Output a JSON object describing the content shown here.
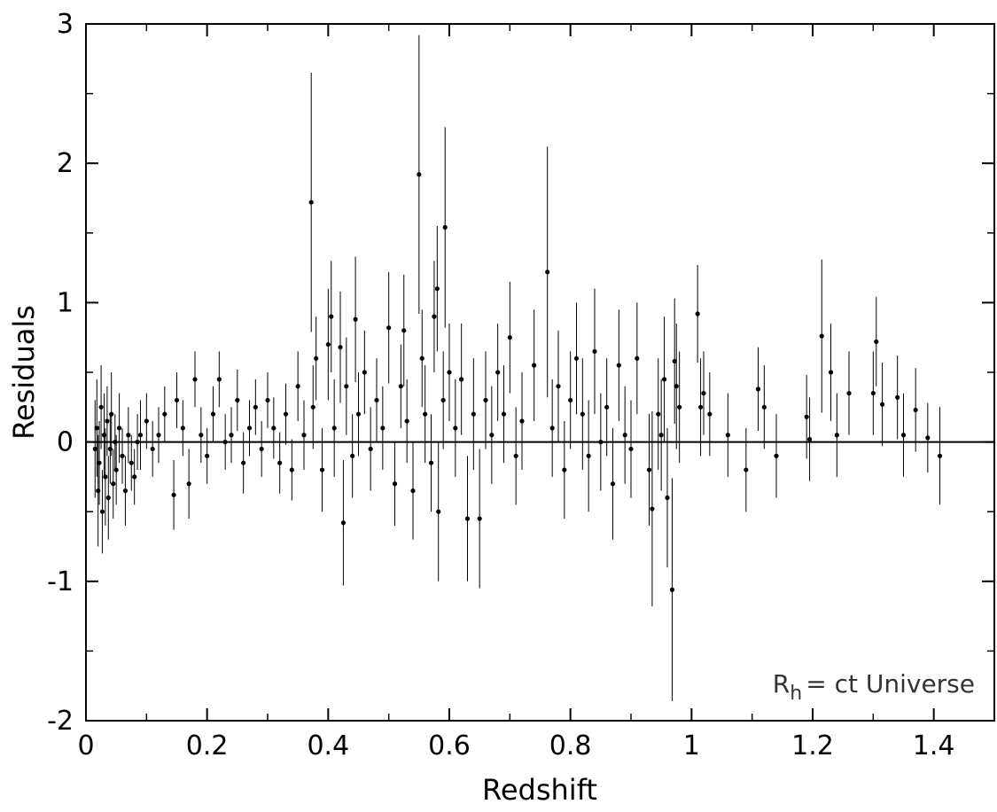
{
  "chart_data": {
    "type": "scatter",
    "title": "",
    "xlabel": "Redshift",
    "ylabel": "Residuals",
    "xlim": [
      0,
      1.5
    ],
    "ylim": [
      -2,
      3
    ],
    "grid": false,
    "x_ticks": [
      0,
      0.2,
      0.4,
      0.6,
      0.8,
      1,
      1.2,
      1.4
    ],
    "x_tick_labels": [
      "0",
      "0.2",
      "0.4",
      "0.6",
      "0.8",
      "1",
      "1.2",
      "1.4"
    ],
    "y_ticks": [
      -2,
      -1,
      0,
      1,
      2,
      3
    ],
    "y_tick_labels": [
      "-2",
      "-1",
      "0",
      "1",
      "2",
      "3"
    ],
    "reference_line_y": 0,
    "annotation": {
      "main": "R",
      "sub": "h",
      "rest": "= ct  Universe"
    },
    "marker_color": "#000000",
    "series": [
      {
        "marker": "dot-with-errorbar",
        "points": [
          [
            0.015,
            -0.05,
            0.35
          ],
          [
            0.018,
            0.1,
            0.35
          ],
          [
            0.02,
            -0.35,
            0.4
          ],
          [
            0.022,
            -0.15,
            0.3
          ],
          [
            0.025,
            0.25,
            0.3
          ],
          [
            0.027,
            -0.5,
            0.3
          ],
          [
            0.03,
            0.05,
            0.3
          ],
          [
            0.032,
            -0.25,
            0.35
          ],
          [
            0.035,
            0.15,
            0.25
          ],
          [
            0.037,
            -0.4,
            0.3
          ],
          [
            0.04,
            -0.05,
            0.25
          ],
          [
            0.042,
            0.2,
            0.3
          ],
          [
            0.045,
            -0.3,
            0.25
          ],
          [
            0.048,
            0.0,
            0.2
          ],
          [
            0.05,
            -0.2,
            0.25
          ],
          [
            0.055,
            0.1,
            0.25
          ],
          [
            0.06,
            -0.1,
            0.2
          ],
          [
            0.065,
            -0.35,
            0.25
          ],
          [
            0.07,
            0.05,
            0.2
          ],
          [
            0.075,
            -0.15,
            0.2
          ],
          [
            0.08,
            -0.25,
            0.2
          ],
          [
            0.085,
            0.0,
            0.2
          ],
          [
            0.09,
            0.05,
            0.25
          ],
          [
            0.1,
            0.15,
            0.2
          ],
          [
            0.11,
            -0.05,
            0.2
          ],
          [
            0.12,
            0.05,
            0.2
          ],
          [
            0.13,
            0.2,
            0.2
          ],
          [
            0.145,
            -0.38,
            0.25
          ],
          [
            0.15,
            0.3,
            0.2
          ],
          [
            0.16,
            0.1,
            0.2
          ],
          [
            0.17,
            -0.3,
            0.25
          ],
          [
            0.18,
            0.45,
            0.2
          ],
          [
            0.19,
            0.05,
            0.2
          ],
          [
            0.2,
            -0.1,
            0.2
          ],
          [
            0.21,
            0.2,
            0.2
          ],
          [
            0.22,
            0.45,
            0.2
          ],
          [
            0.23,
            0.0,
            0.2
          ],
          [
            0.24,
            0.05,
            0.2
          ],
          [
            0.25,
            0.3,
            0.22
          ],
          [
            0.26,
            -0.15,
            0.22
          ],
          [
            0.27,
            0.1,
            0.2
          ],
          [
            0.28,
            0.25,
            0.2
          ],
          [
            0.29,
            -0.05,
            0.2
          ],
          [
            0.3,
            0.3,
            0.2
          ],
          [
            0.31,
            0.1,
            0.22
          ],
          [
            0.32,
            -0.15,
            0.22
          ],
          [
            0.33,
            0.2,
            0.22
          ],
          [
            0.34,
            -0.2,
            0.22
          ],
          [
            0.35,
            0.4,
            0.25
          ],
          [
            0.36,
            0.05,
            0.25
          ],
          [
            0.372,
            1.72,
            0.93
          ],
          [
            0.375,
            0.25,
            0.3
          ],
          [
            0.38,
            0.6,
            0.3
          ],
          [
            0.39,
            -0.2,
            0.3
          ],
          [
            0.4,
            0.7,
            0.4
          ],
          [
            0.405,
            0.9,
            0.4
          ],
          [
            0.41,
            0.1,
            0.35
          ],
          [
            0.42,
            0.68,
            0.4
          ],
          [
            0.425,
            -0.58,
            0.45
          ],
          [
            0.43,
            0.4,
            0.35
          ],
          [
            0.44,
            -0.1,
            0.3
          ],
          [
            0.445,
            0.88,
            0.45
          ],
          [
            0.45,
            0.2,
            0.3
          ],
          [
            0.46,
            0.5,
            0.3
          ],
          [
            0.47,
            -0.05,
            0.3
          ],
          [
            0.48,
            0.3,
            0.3
          ],
          [
            0.49,
            0.1,
            0.3
          ],
          [
            0.5,
            0.82,
            0.4
          ],
          [
            0.51,
            -0.3,
            0.3
          ],
          [
            0.52,
            0.4,
            0.3
          ],
          [
            0.525,
            0.8,
            0.4
          ],
          [
            0.53,
            0.15,
            0.3
          ],
          [
            0.54,
            -0.35,
            0.35
          ],
          [
            0.55,
            1.92,
            1.0
          ],
          [
            0.555,
            0.6,
            0.35
          ],
          [
            0.56,
            0.2,
            0.35
          ],
          [
            0.57,
            -0.15,
            0.35
          ],
          [
            0.575,
            0.9,
            0.4
          ],
          [
            0.58,
            1.1,
            0.45
          ],
          [
            0.582,
            -0.5,
            0.5
          ],
          [
            0.59,
            0.3,
            0.35
          ],
          [
            0.593,
            1.54,
            0.72
          ],
          [
            0.6,
            0.5,
            0.35
          ],
          [
            0.61,
            0.1,
            0.35
          ],
          [
            0.62,
            0.45,
            0.4
          ],
          [
            0.63,
            -0.55,
            0.45
          ],
          [
            0.64,
            0.2,
            0.4
          ],
          [
            0.65,
            -0.55,
            0.5
          ],
          [
            0.66,
            0.3,
            0.35
          ],
          [
            0.67,
            0.05,
            0.35
          ],
          [
            0.68,
            0.5,
            0.35
          ],
          [
            0.69,
            0.2,
            0.35
          ],
          [
            0.7,
            0.75,
            0.4
          ],
          [
            0.71,
            -0.1,
            0.35
          ],
          [
            0.72,
            0.15,
            0.35
          ],
          [
            0.74,
            0.55,
            0.4
          ],
          [
            0.762,
            1.22,
            0.9
          ],
          [
            0.77,
            0.1,
            0.35
          ],
          [
            0.78,
            0.4,
            0.4
          ],
          [
            0.79,
            -0.2,
            0.35
          ],
          [
            0.8,
            0.3,
            0.35
          ],
          [
            0.81,
            0.6,
            0.4
          ],
          [
            0.82,
            0.2,
            0.4
          ],
          [
            0.83,
            -0.1,
            0.4
          ],
          [
            0.84,
            0.65,
            0.45
          ],
          [
            0.85,
            0.0,
            0.35
          ],
          [
            0.86,
            0.25,
            0.35
          ],
          [
            0.87,
            -0.3,
            0.4
          ],
          [
            0.88,
            0.55,
            0.4
          ],
          [
            0.89,
            0.05,
            0.35
          ],
          [
            0.9,
            -0.05,
            0.35
          ],
          [
            0.91,
            0.6,
            0.4
          ],
          [
            0.93,
            -0.2,
            0.4
          ],
          [
            0.935,
            -0.48,
            0.7
          ],
          [
            0.945,
            0.2,
            0.4
          ],
          [
            0.95,
            0.05,
            0.4
          ],
          [
            0.955,
            0.45,
            0.45
          ],
          [
            0.96,
            -0.4,
            0.5
          ],
          [
            0.968,
            -1.06,
            0.8
          ],
          [
            0.972,
            0.58,
            0.45
          ],
          [
            0.975,
            0.4,
            0.45
          ],
          [
            0.98,
            0.25,
            0.4
          ],
          [
            1.01,
            0.92,
            0.35
          ],
          [
            1.015,
            0.25,
            0.35
          ],
          [
            1.02,
            0.35,
            0.3
          ],
          [
            1.03,
            0.2,
            0.3
          ],
          [
            1.06,
            0.05,
            0.3
          ],
          [
            1.09,
            -0.2,
            0.3
          ],
          [
            1.11,
            0.38,
            0.3
          ],
          [
            1.12,
            0.25,
            0.3
          ],
          [
            1.14,
            -0.1,
            0.3
          ],
          [
            1.19,
            0.18,
            0.3
          ],
          [
            1.195,
            0.02,
            0.3
          ],
          [
            1.215,
            0.76,
            0.55
          ],
          [
            1.23,
            0.5,
            0.35
          ],
          [
            1.24,
            0.05,
            0.3
          ],
          [
            1.26,
            0.35,
            0.3
          ],
          [
            1.3,
            0.35,
            0.3
          ],
          [
            1.305,
            0.72,
            0.32
          ],
          [
            1.315,
            0.27,
            0.3
          ],
          [
            1.34,
            0.32,
            0.3
          ],
          [
            1.35,
            0.05,
            0.3
          ],
          [
            1.37,
            0.23,
            0.3
          ],
          [
            1.39,
            0.03,
            0.25
          ],
          [
            1.41,
            -0.1,
            0.35
          ]
        ]
      }
    ]
  }
}
